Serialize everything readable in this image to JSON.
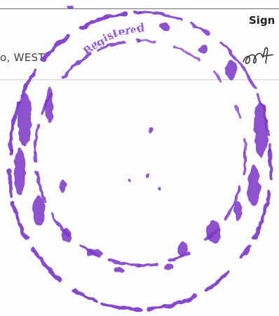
{
  "document": {
    "address_fragment": "o, WEST",
    "signature_label": "Sign",
    "stamp_text": "Registered"
  },
  "colors": {
    "stamp_ink": "#7b35c8",
    "signature_ink": "#333333",
    "rule_dark": "#6f6f6f",
    "rule_light": "#d0d0d0"
  }
}
